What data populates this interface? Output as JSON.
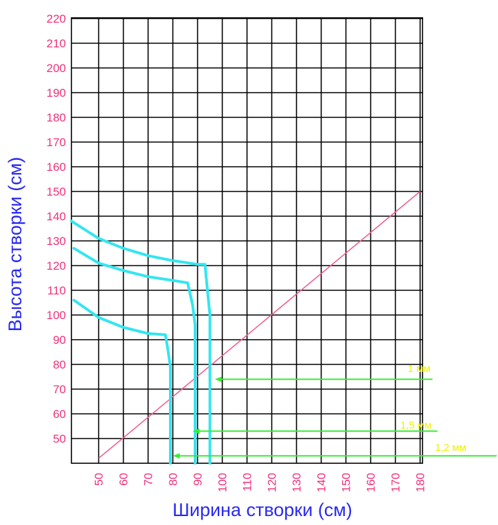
{
  "chart_data": {
    "type": "line",
    "xlabel": "Ширина створки (см)",
    "ylabel": "Высота створки (см)",
    "x_ticks": [
      "50",
      "60",
      "70",
      "80",
      "90",
      "100",
      "110",
      "120",
      "130",
      "140",
      "150",
      "160",
      "170",
      "180"
    ],
    "y_ticks": [
      "50",
      "60",
      "70",
      "80",
      "90",
      "100",
      "110",
      "120",
      "130",
      "140",
      "150",
      "160",
      "170",
      "180",
      "190",
      "200",
      "210",
      "220"
    ],
    "xlim": [
      39,
      181
    ],
    "ylim": [
      40,
      220
    ],
    "grid": true,
    "diagonal": {
      "color": "#f06090",
      "x": [
        50,
        180
      ],
      "y": [
        42,
        150
      ]
    },
    "series": [
      {
        "color": "#33e6f0",
        "points": [
          [
            39,
            138
          ],
          [
            50,
            131
          ],
          [
            60,
            127
          ],
          [
            70,
            124
          ],
          [
            80,
            122
          ],
          [
            90,
            120.5
          ],
          [
            93,
            120.5
          ],
          [
            94,
            110
          ],
          [
            95,
            100
          ],
          [
            95,
            40
          ]
        ]
      },
      {
        "color": "#33e6f0",
        "points": [
          [
            40,
            127
          ],
          [
            50,
            121
          ],
          [
            60,
            118
          ],
          [
            70,
            115.5
          ],
          [
            80,
            114
          ],
          [
            86,
            113
          ],
          [
            88,
            104
          ],
          [
            89,
            96
          ],
          [
            89,
            40
          ]
        ]
      },
      {
        "color": "#33e6f0",
        "points": [
          [
            40,
            106
          ],
          [
            50,
            99
          ],
          [
            60,
            95
          ],
          [
            70,
            92.5
          ],
          [
            77,
            92
          ],
          [
            78,
            86
          ],
          [
            79,
            79
          ],
          [
            79,
            40
          ]
        ]
      }
    ],
    "annotations": [
      {
        "text": "1 мм",
        "label_x": 175,
        "label_y": 77,
        "arrow_from": 185,
        "arrow_to": 97,
        "arrow_y": 74
      },
      {
        "text": "1,5 мм",
        "label_x": 172,
        "label_y": 54,
        "arrow_from": 187,
        "arrow_to": 88,
        "arrow_y": 53
      },
      {
        "text": "1,2 мм",
        "label_x": 186,
        "label_y": 45,
        "arrow_from": 213,
        "arrow_to": 80,
        "arrow_y": 43
      }
    ],
    "colors": {
      "grid": "#000000",
      "tick": "#f0307a",
      "axis_label": "#2a2af0",
      "arrow": "#33ee33",
      "annotation": "#f0f000"
    }
  }
}
